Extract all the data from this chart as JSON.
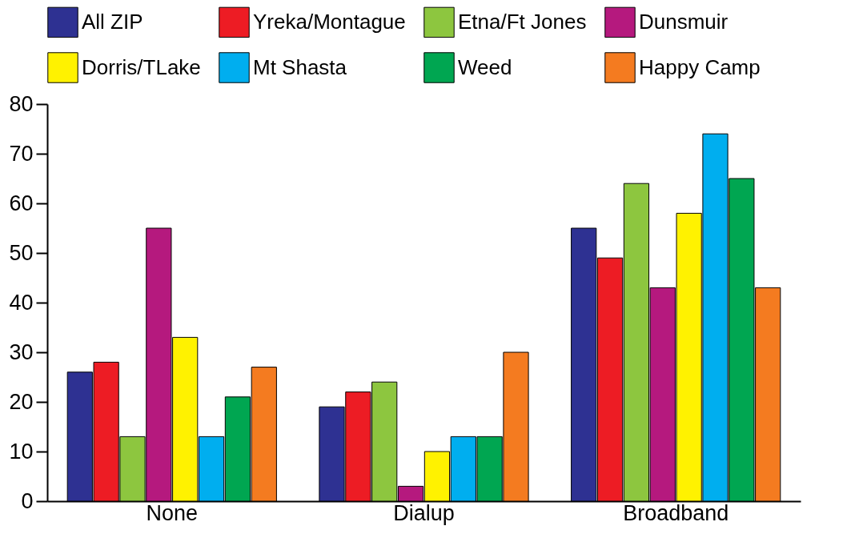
{
  "chart_data": {
    "type": "bar",
    "categories": [
      "None",
      "Dialup",
      "Broadband"
    ],
    "series": [
      {
        "name": "All ZIP",
        "color": "#2e3192",
        "values": [
          26,
          19,
          55
        ]
      },
      {
        "name": "Yreka/Montague",
        "color": "#ed1c24",
        "values": [
          28,
          22,
          49
        ]
      },
      {
        "name": "Etna/Ft Jones",
        "color": "#8dc63f",
        "values": [
          13,
          24,
          64
        ]
      },
      {
        "name": "Dunsmuir",
        "color": "#b5197e",
        "values": [
          55,
          3,
          43
        ]
      },
      {
        "name": "Dorris/TLake",
        "color": "#fff200",
        "values": [
          33,
          10,
          58
        ]
      },
      {
        "name": "Mt Shasta",
        "color": "#00aeef",
        "values": [
          13,
          13,
          74
        ]
      },
      {
        "name": "Weed",
        "color": "#00a651",
        "values": [
          21,
          13,
          65
        ]
      },
      {
        "name": "Happy Camp",
        "color": "#f47b20",
        "values": [
          27,
          30,
          43
        ]
      }
    ],
    "ylim": [
      0,
      80
    ],
    "yticks": [
      0,
      10,
      20,
      30,
      40,
      50,
      60,
      70,
      80
    ],
    "grid": false,
    "legend": "top"
  }
}
